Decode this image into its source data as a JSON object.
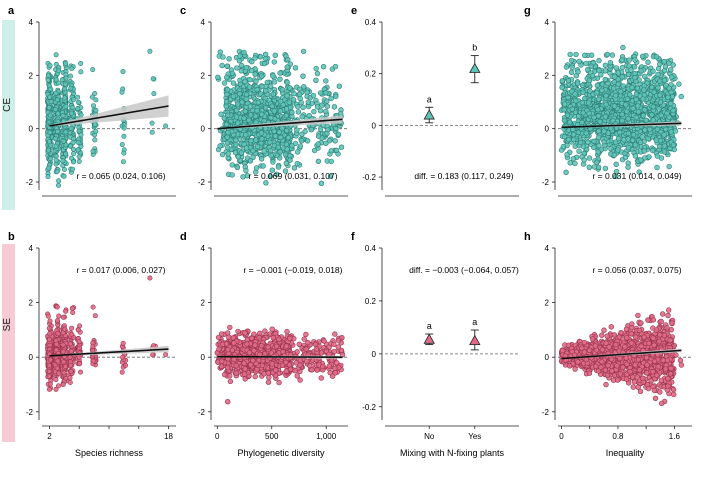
{
  "row_labels": {
    "ce": "CE",
    "se": "SE"
  },
  "colors": {
    "ce": "#5fc4b8",
    "se": "#e06b86",
    "ce_stroke": "#2f7f77",
    "se_stroke": "#9a3550",
    "line": "#111111",
    "ci": "#c8c8c8",
    "dash": "#666666"
  },
  "chart_data": [
    {
      "id": "a",
      "panel_letter": "a",
      "row": "CE",
      "type": "scatter",
      "xlabel": "",
      "ylabel": "",
      "x_kind": "species",
      "xlim": [
        1,
        19
      ],
      "ylim": [
        -2.3,
        4
      ],
      "yticks": [
        "-2",
        "0",
        "2",
        "4"
      ],
      "xticks": [],
      "x": [
        2,
        3,
        4,
        5,
        6,
        8,
        12,
        16
      ],
      "fit": {
        "x": [
          2,
          18
        ],
        "y": [
          0.1,
          0.85
        ]
      },
      "ci_band": {
        "upper_end": 1.25,
        "lower_end": 0.45
      },
      "annotation": "r = 0.065 (0.024, 0.106)",
      "annotation_pos": "bottom"
    },
    {
      "id": "c",
      "panel_letter": "c",
      "row": "CE",
      "type": "scatter",
      "xlabel": "",
      "ylabel": "",
      "x_kind": "continuous",
      "xlim": [
        -30,
        1200
      ],
      "ylim": [
        -2.3,
        4
      ],
      "yticks": [
        "-2",
        "0",
        "2",
        "4"
      ],
      "xticks": [],
      "fit": {
        "x": [
          0,
          1150
        ],
        "y": [
          0.0,
          0.35
        ]
      },
      "ci_band": {
        "upper_end": 0.5,
        "lower_end": 0.2
      },
      "annotation": "r = 0.069 (0.031, 0.107)",
      "annotation_pos": "bottom"
    },
    {
      "id": "e",
      "panel_letter": "e",
      "row": "CE",
      "type": "pointrange",
      "xlabel": "",
      "ylabel": "",
      "categories": [
        "No",
        "Yes"
      ],
      "xticks": [],
      "ylim": [
        -0.25,
        0.4
      ],
      "yticks": [
        "-0.2",
        "0",
        "0.2",
        "0.4"
      ],
      "values": [
        0.04,
        0.22
      ],
      "ci_low": [
        0.01,
        0.165
      ],
      "ci_high": [
        0.07,
        0.27
      ],
      "letters": [
        "a",
        "b"
      ],
      "annotation": "diff. = 0.183 (0.117, 0.249)",
      "annotation_pos": "bottom"
    },
    {
      "id": "g",
      "panel_letter": "g",
      "row": "CE",
      "type": "scatter",
      "xlabel": "",
      "ylabel": "",
      "x_kind": "ineq",
      "xlim": [
        -0.05,
        1.85
      ],
      "ylim": [
        -2.3,
        4
      ],
      "yticks": [
        "-2",
        "0",
        "2",
        "4"
      ],
      "xticks": [],
      "fit": {
        "x": [
          0,
          1.7
        ],
        "y": [
          0.05,
          0.2
        ]
      },
      "ci_band": {
        "upper_end": 0.28,
        "lower_end": 0.12
      },
      "annotation": "r = 0.031 (0.014, 0.049)",
      "annotation_pos": "bottom"
    },
    {
      "id": "b",
      "panel_letter": "b",
      "row": "SE",
      "type": "scatter",
      "xlabel": "Species richness",
      "ylabel": "",
      "x_kind": "species",
      "xlim": [
        1,
        19
      ],
      "ylim": [
        -2.3,
        4
      ],
      "yticks": [
        "-2",
        "0",
        "2",
        "4"
      ],
      "xticks": [
        {
          "v": 2,
          "label": "2"
        },
        {
          "v": 6,
          "label": ""
        },
        {
          "v": 10,
          "label": ""
        },
        {
          "v": 14,
          "label": ""
        },
        {
          "v": 18,
          "label": "18"
        }
      ],
      "x": [
        2,
        3,
        4,
        5,
        6,
        8,
        12,
        16
      ],
      "fit": {
        "x": [
          2,
          18
        ],
        "y": [
          0.05,
          0.3
        ]
      },
      "ci_band": {
        "upper_end": 0.42,
        "lower_end": 0.18
      },
      "annotation": "r = 0.017 (0.006, 0.027)",
      "annotation_pos": "top"
    },
    {
      "id": "d",
      "panel_letter": "d",
      "row": "SE",
      "type": "scatter",
      "xlabel": "Phylogenetic diversity",
      "ylabel": "",
      "x_kind": "continuous",
      "xlim": [
        -30,
        1200
      ],
      "ylim": [
        -2.3,
        4
      ],
      "yticks": [
        "-2",
        "0",
        "2",
        "4"
      ],
      "xticks": [
        {
          "v": 0,
          "label": "0"
        },
        {
          "v": 500,
          "label": "500"
        },
        {
          "v": 1000,
          "label": "1,000"
        }
      ],
      "fit": {
        "x": [
          0,
          1150
        ],
        "y": [
          0.02,
          0.0
        ]
      },
      "ci_band": {
        "upper_end": 0.06,
        "lower_end": -0.06
      },
      "annotation": "r = −0.001 (−0.019, 0.018)",
      "annotation_pos": "top"
    },
    {
      "id": "f",
      "panel_letter": "f",
      "row": "SE",
      "type": "pointrange",
      "xlabel": "Mixing with N-fixing plants",
      "ylabel": "",
      "categories": [
        "No",
        "Yes"
      ],
      "xticks": [
        {
          "label": "No"
        },
        {
          "label": "Yes"
        }
      ],
      "ylim": [
        -0.25,
        0.4
      ],
      "yticks": [
        "-0.2",
        "0",
        "0.2",
        "0.4"
      ],
      "values": [
        0.055,
        0.05
      ],
      "ci_low": [
        0.035,
        0.015
      ],
      "ci_high": [
        0.075,
        0.09
      ],
      "letters": [
        "a",
        "a"
      ],
      "annotation": "diff. = −0.003 (−0.064, 0.057)",
      "annotation_pos": "top"
    },
    {
      "id": "h",
      "panel_letter": "h",
      "row": "SE",
      "type": "scatter",
      "xlabel": "Inequality",
      "ylabel": "",
      "x_kind": "ineq",
      "xlim": [
        -0.05,
        1.85
      ],
      "ylim": [
        -2.3,
        4
      ],
      "yticks": [
        "-2",
        "0",
        "2",
        "4"
      ],
      "xticks": [
        {
          "v": 0,
          "label": "0"
        },
        {
          "v": 0.4,
          "label": ""
        },
        {
          "v": 0.8,
          "label": "0.8"
        },
        {
          "v": 1.2,
          "label": ""
        },
        {
          "v": 1.6,
          "label": "1.6"
        }
      ],
      "fit": {
        "x": [
          0,
          1.7
        ],
        "y": [
          -0.05,
          0.25
        ]
      },
      "ci_band": {
        "upper_end": 0.32,
        "lower_end": 0.18
      },
      "annotation": "r = 0.056 (0.037, 0.075)",
      "annotation_pos": "top"
    }
  ]
}
